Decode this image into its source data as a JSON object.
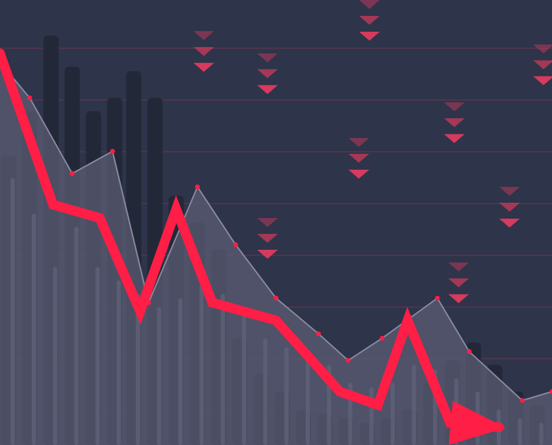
{
  "colors": {
    "background": "#2e3449",
    "gridline": "#7a3a55",
    "dark_bar": "#232838",
    "light_bar": "#62647a",
    "area_fill": "#5b5c73",
    "area_stroke": "#8a8aa0",
    "trend_line": "#ff1e45",
    "down_marker": "#d63a5e"
  },
  "chart_data": {
    "type": "line",
    "title": "",
    "xlabel": "",
    "ylabel": "",
    "grid": true,
    "legend": "none",
    "xlim": [
      0,
      26
    ],
    "ylim": [
      0,
      100
    ],
    "x": [
      0,
      2.5,
      4.7,
      6.6,
      8.3,
      10.0,
      13.0,
      16.0,
      17.8,
      19.2,
      21.2,
      23.5
    ],
    "series": [
      {
        "role": "trend",
        "values": [
          88,
          54,
          51,
          30,
          53,
          32,
          28,
          12,
          9,
          28,
          5,
          4
        ]
      }
    ],
    "background_area": {
      "x": [
        0,
        1.4,
        3.4,
        5.3,
        7.0,
        9.3,
        11.1,
        13.0,
        15.0,
        16.4,
        18.0,
        20.6,
        22.1,
        24.6,
        26
      ],
      "values": [
        86,
        78,
        61,
        66,
        32,
        58,
        45,
        33,
        25,
        19,
        24,
        33,
        21,
        10,
        12
      ]
    },
    "background_bars_dark": {
      "x": [
        0.4,
        1.4,
        2.4,
        3.4,
        4.4,
        5.4,
        6.3,
        7.3,
        8.3,
        9.3,
        10.3,
        11.3,
        12.3,
        13.3,
        14.3,
        15.3,
        16.3,
        17.3,
        18.3,
        19.3,
        20.3,
        21.3,
        22.3,
        23.3,
        24.3,
        25.3
      ],
      "values": [
        65,
        75,
        92,
        85,
        75,
        78,
        84,
        78,
        56,
        50,
        44,
        24,
        16,
        12,
        8,
        7,
        6,
        5,
        6,
        8,
        14,
        19,
        23,
        18,
        12,
        9
      ]
    },
    "background_bars_light": {
      "x": [
        0.4,
        1.4,
        2.4,
        3.4,
        4.4,
        5.4,
        6.3,
        7.3,
        8.3,
        9.3,
        10.3,
        11.3,
        12.3,
        13.3,
        14.3,
        15.3,
        16.3,
        17.3,
        18.3,
        19.3,
        20.3,
        21.3,
        22.3,
        23.3,
        24.3,
        25.3
      ],
      "values": [
        60,
        52,
        40,
        49,
        40,
        37,
        34,
        31,
        33,
        36,
        34,
        30,
        24,
        22,
        20,
        18,
        14,
        13,
        14,
        18,
        17,
        15,
        12,
        8,
        6,
        5
      ]
    },
    "down_markers": [
      {
        "x": 9.6,
        "y": 93
      },
      {
        "x": 12.6,
        "y": 88
      },
      {
        "x": 17.4,
        "y": 100
      },
      {
        "x": 12.6,
        "y": 51
      },
      {
        "x": 16.9,
        "y": 69
      },
      {
        "x": 21.6,
        "y": 41
      },
      {
        "x": 24.0,
        "y": 58
      },
      {
        "x": 25.6,
        "y": 90
      },
      {
        "x": 21.4,
        "y": 77
      }
    ]
  }
}
